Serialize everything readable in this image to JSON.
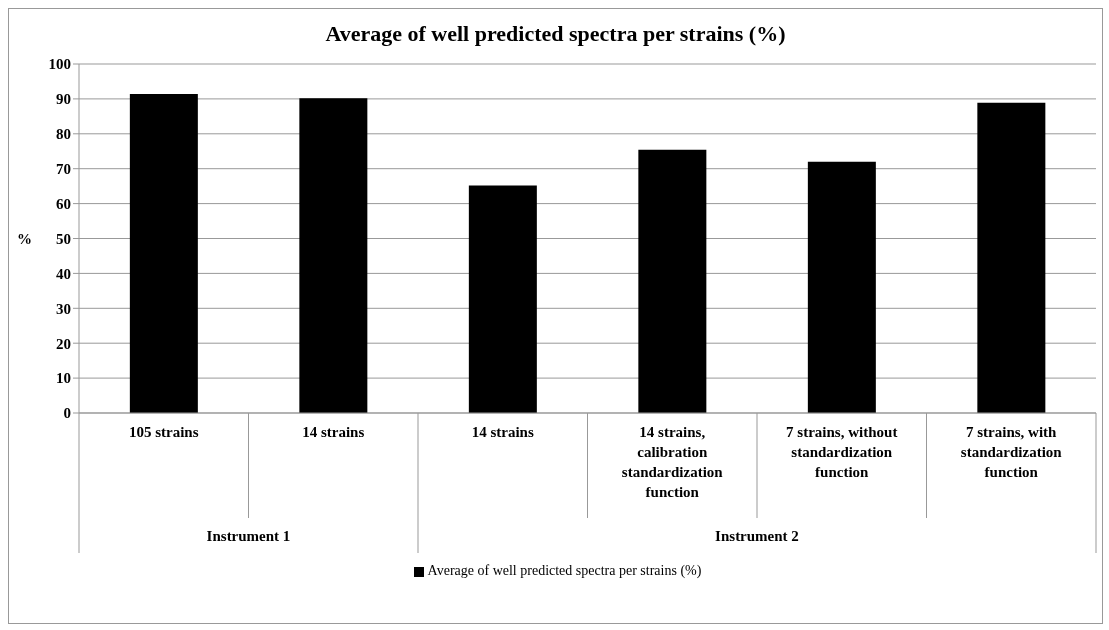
{
  "chart_data": {
    "type": "bar",
    "title": "Average of well predicted spectra per strains (%)",
    "ylabel": "%",
    "categories": [
      "105 strains",
      "14 strains",
      "14 strains",
      "14 strains, calibration standardization function",
      "7 strains, without standardization function",
      "7 strains, with standardization function"
    ],
    "series": [
      {
        "name": "Average of well predicted spectra per strains (%)",
        "color": "#000000",
        "values": [
          91.4,
          90.2,
          65.2,
          75.4,
          72.0,
          88.9
        ]
      }
    ],
    "ylim": [
      0,
      100
    ],
    "yticks": [
      0,
      10,
      20,
      30,
      40,
      50,
      60,
      70,
      80,
      90,
      100
    ],
    "grid": "y",
    "legend": "bottom",
    "annotations": [
      "Instrument 1",
      "Instrument 2"
    ]
  }
}
